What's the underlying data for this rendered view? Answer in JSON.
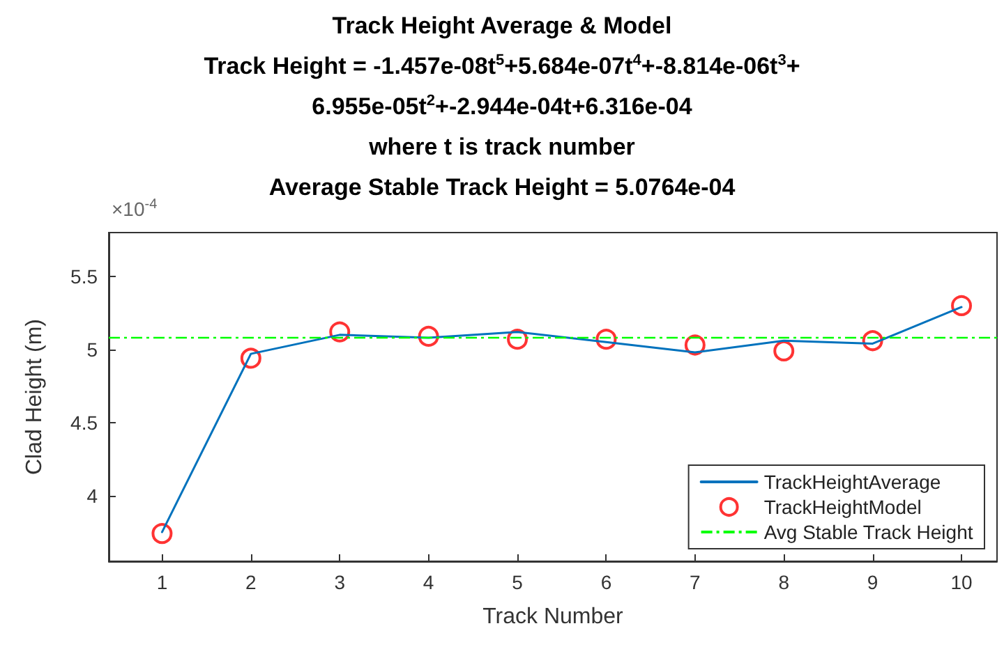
{
  "chart_data": {
    "type": "line",
    "title": "Track Height Average & Model",
    "subtitle": "Track Height = -1.457e-08t$^{5}$+5.684e-07t$^{4}$+-8.814e-06t$^{3}$+\n6.955e-05t$^{2}$+-2.944e-04t+6.316e-04\nwhere t is track number\nAverage Stable Track Height = 5.0764e-04",
    "xlabel": "Track Number",
    "ylabel": "Clad Height (m)",
    "annotations": [
      "×10$^{-4}$"
    ],
    "x": [
      1,
      2,
      3,
      4,
      5,
      6,
      7,
      8,
      9,
      10
    ],
    "series": [
      {
        "name": "TrackHeightAverage",
        "color": "#0072bd",
        "marker": "none",
        "line_style": "solid",
        "values": [
          3.75,
          4.97,
          5.1,
          5.08,
          5.12,
          5.05,
          4.98,
          5.06,
          5.04,
          5.29
        ]
      },
      {
        "name": "TrackHeightModel",
        "type": "scatter",
        "color": "#ff0000",
        "marker": "circle",
        "values": [
          3.74,
          4.94,
          5.12,
          5.09,
          5.07,
          5.07,
          5.03,
          4.99,
          5.06,
          5.3
        ]
      }
    ],
    "ref_lines": [
      {
        "axis": "y",
        "value": 5.0764,
        "label": "Avg Stable Track Height",
        "color": "#00ff00",
        "line_style": "dashed"
      }
    ],
    "xlim": [
      0.4,
      10.4
    ],
    "xticks": [
      1,
      2,
      3,
      4,
      5,
      6,
      7,
      8,
      9,
      10
    ],
    "ylim": [
      3.55,
      5.8
    ],
    "yticks": [
      4,
      4.5,
      5,
      5.5
    ],
    "legend": "bottom right",
    "grid": false
  }
}
